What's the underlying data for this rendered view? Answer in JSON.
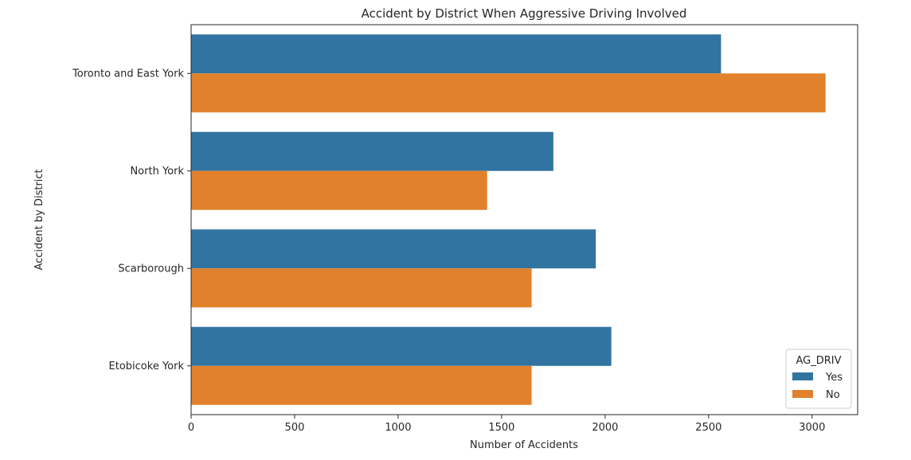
{
  "chart_data": {
    "type": "bar",
    "orientation": "horizontal",
    "title": "Accident by District When Aggressive Driving Involved",
    "xlabel": "Number of Accidents",
    "ylabel": "Accident by District",
    "categories": [
      "Toronto and East York",
      "North York",
      "Scarborough",
      "Etobicoke York"
    ],
    "series": [
      {
        "name": "Yes",
        "color": "#3274a1",
        "values": [
          2560,
          1750,
          1955,
          2030
        ]
      },
      {
        "name": "No",
        "color": "#e1812c",
        "values": [
          3065,
          1430,
          1645,
          1645
        ]
      }
    ],
    "xlim": [
      0,
      3220
    ],
    "xticks": [
      0,
      500,
      1000,
      1500,
      2000,
      2500,
      3000
    ],
    "grid": false,
    "legend": {
      "title": "AG_DRIV",
      "placement": "lower-right"
    }
  }
}
